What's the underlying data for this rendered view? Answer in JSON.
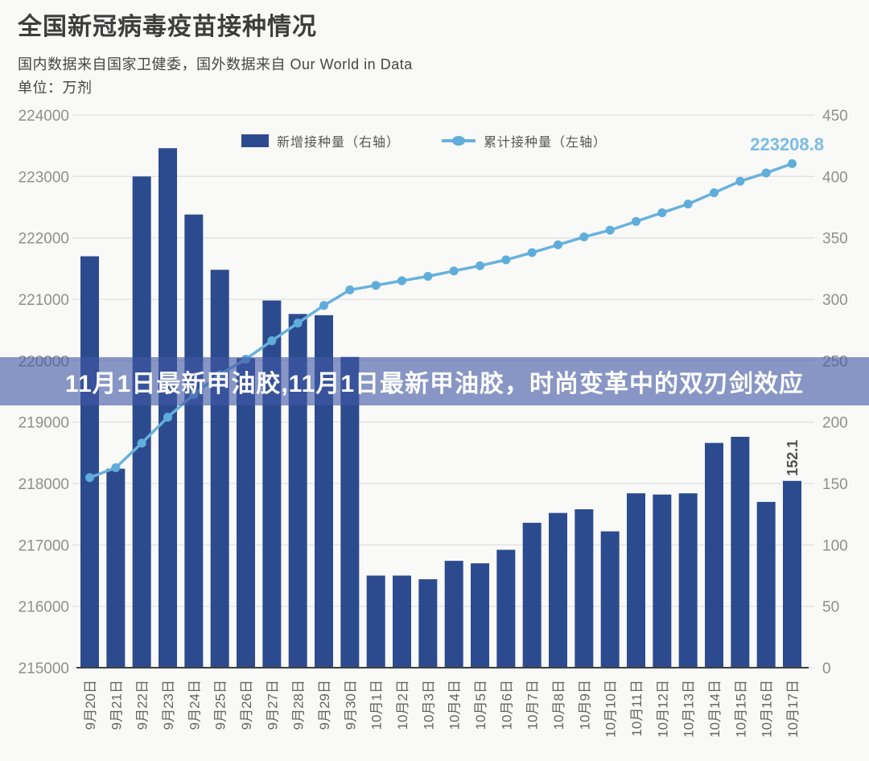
{
  "header": {
    "title": "全国新冠病毒疫苗接种情况",
    "source_line": "国内数据来自国家卫健委，国外数据来自 Our World in Data",
    "unit_line": "单位：万剂"
  },
  "legend": {
    "bar_label": "新增接种量（右轴）",
    "line_label": "累计接种量（左轴）"
  },
  "overlay_banner": {
    "text": "11月1日最新甲油胶,11月1日最新甲油胶，时尚变革中的双刃剑效应"
  },
  "chart_data": {
    "type": "bar+line",
    "categories": [
      "9月20日",
      "9月21日",
      "9月22日",
      "9月23日",
      "9月24日",
      "9月25日",
      "9月26日",
      "9月27日",
      "9月28日",
      "9月29日",
      "9月30日",
      "10月1日",
      "10月2日",
      "10月3日",
      "10月4日",
      "10月5日",
      "10月6日",
      "10月7日",
      "10月8日",
      "10月9日",
      "10月10日",
      "10月11日",
      "10月12日",
      "10月13日",
      "10月14日",
      "10月15日",
      "10月16日",
      "10月17日"
    ],
    "series": [
      {
        "name": "新增接种量（右轴）",
        "type": "bar",
        "axis": "right",
        "values": [
          335,
          162,
          400,
          423,
          369,
          324,
          252,
          299,
          288,
          287,
          253,
          75,
          75,
          72,
          87,
          85,
          96,
          118,
          126,
          129,
          111,
          142,
          141,
          142,
          183,
          188,
          135,
          152.1
        ]
      },
      {
        "name": "累计接种量（左轴）",
        "type": "line",
        "axis": "left",
        "values": [
          218094.7,
          218256.7,
          218656.7,
          219079.7,
          219448.7,
          219772.7,
          220024.7,
          220323.7,
          220611.7,
          220898.7,
          221151.7,
          221226.7,
          221301.7,
          221373.7,
          221460.7,
          221545.7,
          221641.7,
          221759.7,
          221885.7,
          222014.7,
          222125.7,
          222267.7,
          222408.7,
          222550.7,
          222733.7,
          222921.7,
          223056.7,
          223208.8
        ]
      }
    ],
    "left_axis": {
      "min": 215000,
      "max": 224000,
      "step": 1000,
      "ticks": [
        "224000",
        "223000",
        "222000",
        "221000",
        "220000",
        "219000",
        "218000",
        "217000",
        "216000",
        "215000"
      ]
    },
    "right_axis": {
      "min": 0,
      "max": 450,
      "step": 50,
      "ticks": [
        "450",
        "400",
        "350",
        "300",
        "250",
        "200",
        "150",
        "100",
        "50",
        "0"
      ]
    },
    "annotations": {
      "last_cumulative_label": "223208.8",
      "last_bar_label": "152.1"
    },
    "grid": true,
    "legend_position": "top-center",
    "colors": {
      "bar": "#2c4b8f",
      "line": "#68b1dc",
      "point": "#5fadda",
      "grid": "#e2e2e2",
      "axis_line": "#3f3f3f",
      "axis_tick_text": "#8f8f8f",
      "x_label_text": "#636363",
      "cumulative_annotation": "#7abde6",
      "bar_annotation": "#4f4f4f",
      "banner_bg": "rgba(65,88,165,0.62)"
    }
  }
}
